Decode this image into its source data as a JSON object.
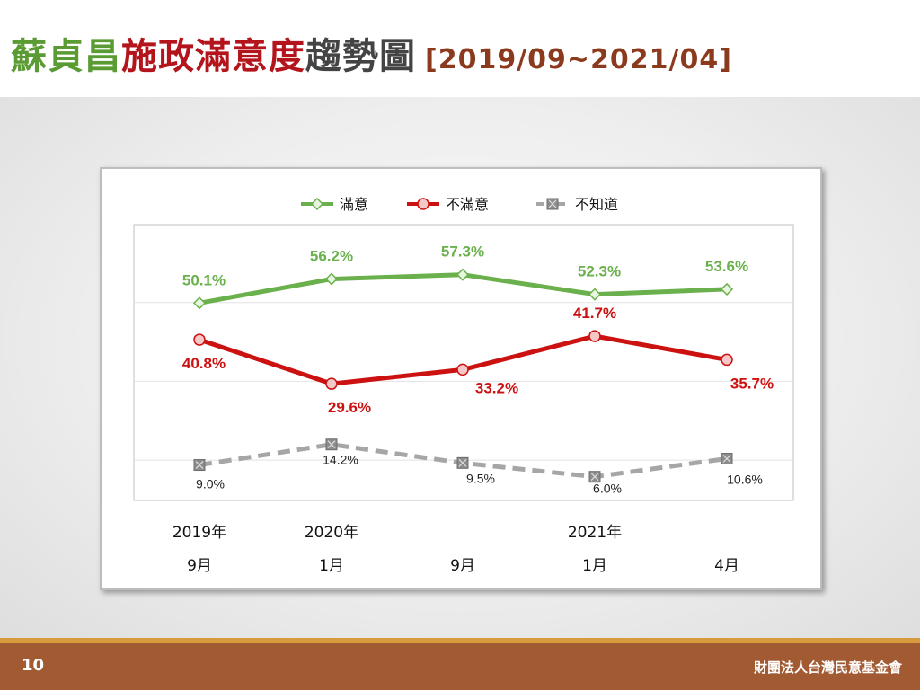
{
  "header": {
    "title_part1": "蘇貞昌",
    "title_part2": "施政滿意度",
    "title_part3": "趨勢圖",
    "title_range": "[2019/09~2021/04]",
    "colors": {
      "part1": "#5a9b33",
      "part2": "#b4141c",
      "part3": "#444444"
    }
  },
  "chart_data": {
    "type": "line",
    "categories": [
      "2019年 9月",
      "2020年 1月",
      "9月",
      "2021年 1月",
      "4月"
    ],
    "x_tick_years": [
      "2019年",
      "2020年",
      "",
      "2021年",
      ""
    ],
    "x_tick_months": [
      "9月",
      "1月",
      "9月",
      "1月",
      "4月"
    ],
    "ylim": [
      0,
      70
    ],
    "grid": true,
    "legend_position": "top",
    "series": [
      {
        "name": "滿意",
        "values": [
          50.1,
          56.2,
          57.3,
          52.3,
          53.6
        ],
        "labels": [
          "50.1%",
          "56.2%",
          "57.3%",
          "52.3%",
          "53.6%"
        ],
        "color": "#6ab04c",
        "marker": "diamond",
        "dash": false
      },
      {
        "name": "不滿意",
        "values": [
          40.8,
          29.6,
          33.2,
          41.7,
          35.7
        ],
        "labels": [
          "40.8%",
          "29.6%",
          "33.2%",
          "41.7%",
          "35.7%"
        ],
        "color": "#cc1111",
        "marker": "circle",
        "dash": false
      },
      {
        "name": "不知道",
        "values": [
          9.0,
          14.2,
          9.5,
          6.0,
          10.6
        ],
        "labels": [
          "9.0%",
          "14.2%",
          "9.5%",
          "6.0%",
          "10.6%"
        ],
        "color": "#a6a6a6",
        "marker": "square-x",
        "dash": true
      }
    ]
  },
  "footer": {
    "page_number": "10",
    "organization": "財團法人台灣民意基金會"
  }
}
